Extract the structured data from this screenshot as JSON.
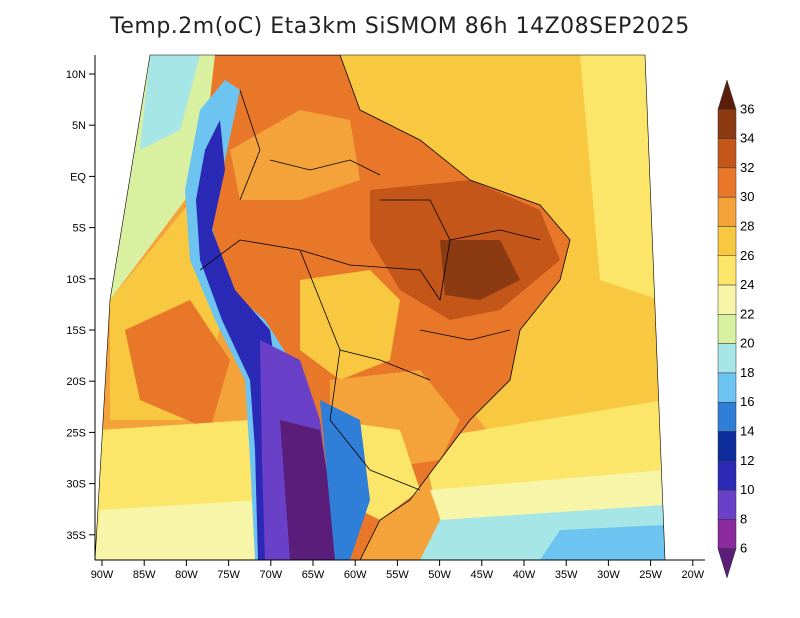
{
  "title": "Temp.2m(oC) Eta3km SiSMOM 86h 14Z08SEP2025",
  "lat_labels": [
    "10N",
    "5N",
    "EQ",
    "5S",
    "10S",
    "15S",
    "20S",
    "25S",
    "30S",
    "35S"
  ],
  "lon_labels": [
    "90W",
    "85W",
    "80W",
    "75W",
    "70W",
    "65W",
    "60W",
    "55W",
    "50W",
    "45W",
    "40W",
    "35W",
    "30W",
    "25W",
    "20W"
  ],
  "colorbar": {
    "labels": [
      "36",
      "34",
      "32",
      "30",
      "28",
      "26",
      "24",
      "22",
      "20",
      "18",
      "16",
      "14",
      "12",
      "10",
      "8",
      "6"
    ],
    "colors": [
      "#5a1e0a",
      "#8c3a12",
      "#c4561a",
      "#e8772a",
      "#f4a23a",
      "#f8c840",
      "#fbe66a",
      "#f6f5a8",
      "#d8f0a0",
      "#a6e6e6",
      "#6ec4f0",
      "#2f7fd8",
      "#0d2c9c",
      "#2a2ab6",
      "#6a40c8",
      "#8a2a9e",
      "#5a1e7a"
    ]
  },
  "map": {
    "ocean_atlantic_color": "#f8c840",
    "ocean_pacific_color": "#f4a23a",
    "land_color": "#e8772a",
    "andes_color": "#6a40c8"
  }
}
